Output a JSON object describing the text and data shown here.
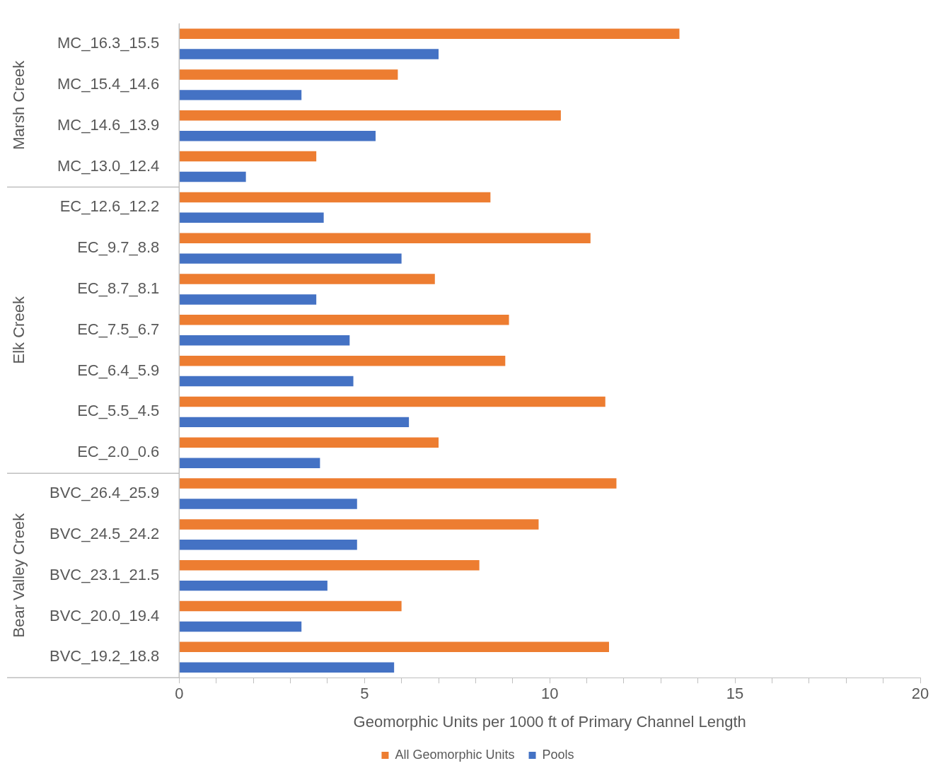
{
  "chart_data": {
    "type": "bar",
    "orientation": "horizontal",
    "xlabel": "Geomorphic Units per 1000 ft of Primary Channel Length",
    "categories": [
      "MC_16.3_15.5",
      "MC_15.4_14.6",
      "MC_14.6_13.9",
      "MC_13.0_12.4",
      "EC_12.6_12.2",
      "EC_9.7_8.8",
      "EC_8.7_8.1",
      "EC_7.5_6.7",
      "EC_6.4_5.9",
      "EC_5.5_4.5",
      "EC_2.0_0.6",
      "BVC_26.4_25.9",
      "BVC_24.5_24.2",
      "BVC_23.1_21.5",
      "BVC_20.0_19.4",
      "BVC_19.2_18.8"
    ],
    "series": [
      {
        "name": "All Geomorphic Units",
        "color": "#ed7d31",
        "values": [
          13.5,
          5.9,
          10.3,
          3.7,
          8.4,
          11.1,
          6.9,
          8.9,
          8.8,
          11.5,
          7.0,
          11.8,
          9.7,
          8.1,
          6.0,
          11.6
        ]
      },
      {
        "name": "Pools",
        "color": "#4472c4",
        "values": [
          7.0,
          3.3,
          5.3,
          1.8,
          3.9,
          6.0,
          3.7,
          4.6,
          4.7,
          6.2,
          3.8,
          4.8,
          4.8,
          4.0,
          3.3,
          5.8
        ]
      }
    ],
    "xlim": [
      0,
      20
    ],
    "xticks": [
      0,
      {
        "value": 1,
        "label": null
      },
      {
        "value": 2,
        "label": null
      },
      {
        "value": 3,
        "label": null
      },
      {
        "value": 4,
        "label": null
      },
      5,
      {
        "value": 6,
        "label": null
      },
      {
        "value": 7,
        "label": null
      },
      {
        "value": 8,
        "label": null
      },
      {
        "value": 9,
        "label": null
      },
      10,
      {
        "value": 11,
        "label": null
      },
      {
        "value": 12,
        "label": null
      },
      {
        "value": 13,
        "label": null
      },
      {
        "value": 14,
        "label": null
      },
      15,
      {
        "value": 16,
        "label": null
      },
      {
        "value": 17,
        "label": null
      },
      {
        "value": 18,
        "label": null
      },
      {
        "value": 19,
        "label": null
      },
      20
    ],
    "annotations": [
      "Marsh Creek",
      "Elk Creek",
      "Bear Valley Creek"
    ],
    "grid": false,
    "legend": "bottom"
  }
}
